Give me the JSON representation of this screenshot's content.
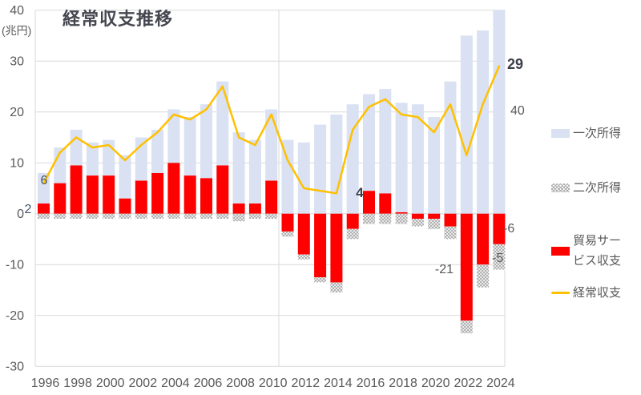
{
  "title": "経常収支推移",
  "y_axis": {
    "unit_label": "(兆円)",
    "ticks": [
      40,
      30,
      20,
      10,
      0,
      -10,
      -20,
      -30
    ]
  },
  "x_axis": {
    "ticks": [
      "1996",
      "1998",
      "2000",
      "2002",
      "2004",
      "2006",
      "2008",
      "2010",
      "2012",
      "2014",
      "2016",
      "2018",
      "2020",
      "2022",
      "2024"
    ]
  },
  "legend": {
    "items": [
      {
        "label": "一次所得",
        "swatch": "solid",
        "color": "#d9e1f2"
      },
      {
        "label": "二次所得",
        "swatch": "hatch",
        "color": "#ababab"
      },
      {
        "label": "貿易サービス収支",
        "swatch": "solid",
        "color": "#ff0000"
      },
      {
        "label": "経常収支",
        "swatch": "line",
        "color": "#ffc000"
      }
    ]
  },
  "chart_data": {
    "type": "combo-stacked-bar-and-line",
    "title": "経常収支推移",
    "ylabel": "(兆円)",
    "ylim": [
      -30,
      40
    ],
    "grid": true,
    "legend_position": "right",
    "x": [
      1996,
      1997,
      1998,
      1999,
      2000,
      2001,
      2002,
      2003,
      2004,
      2005,
      2006,
      2007,
      2008,
      2009,
      2010,
      2011,
      2012,
      2013,
      2014,
      2015,
      2016,
      2017,
      2018,
      2019,
      2020,
      2021,
      2022,
      2023,
      2024
    ],
    "series": [
      {
        "name": "一次所得",
        "type": "bar",
        "stack": true,
        "color": "#d9e1f2",
        "values": [
          6,
          7,
          7,
          6.5,
          7,
          8.5,
          8.5,
          8.5,
          10.5,
          11.5,
          14.5,
          16.5,
          14,
          12.5,
          14,
          14.5,
          14,
          17.5,
          19.5,
          21.5,
          19,
          20.5,
          21.5,
          21.5,
          19,
          26,
          35,
          36,
          40
        ]
      },
      {
        "name": "二次所得",
        "type": "bar",
        "stack": true,
        "pattern": "hatch",
        "color": "#ababab",
        "values": [
          -1,
          -1,
          -1,
          -1,
          -1,
          -1,
          -1,
          -1,
          -1,
          -1,
          -1,
          -1,
          -1.5,
          -1,
          -1,
          -1,
          -1,
          -1,
          -2,
          -2,
          -2,
          -2,
          -2,
          -1.5,
          -2,
          -2.5,
          -2.5,
          -4.5,
          -5
        ]
      },
      {
        "name": "貿易サービス収支",
        "type": "bar",
        "stack": true,
        "color": "#ff0000",
        "values": [
          2,
          6,
          9.5,
          7.5,
          7.5,
          3,
          6.5,
          8,
          10,
          7.5,
          7,
          9.5,
          2,
          2,
          6.5,
          -3.5,
          -8,
          -12.5,
          -13.5,
          -3,
          4.5,
          4,
          0.3,
          -1,
          -1,
          -2.5,
          -21,
          -10,
          -6
        ]
      },
      {
        "name": "経常収支",
        "type": "line",
        "color": "#ffc000",
        "values": [
          6,
          12,
          15,
          13,
          13.5,
          10.5,
          13.5,
          16,
          19.5,
          18.5,
          20.5,
          25,
          15,
          13.5,
          19.5,
          10.5,
          5,
          4.5,
          4,
          16.5,
          21,
          22.5,
          19.5,
          19,
          16,
          21.5,
          11.5,
          21.5,
          29
        ]
      }
    ],
    "annotations": [
      {
        "id": "label-1996-line",
        "text": "6",
        "year": 1996,
        "series": "経常収支"
      },
      {
        "id": "label-1996-trade",
        "text": "2",
        "year": 1996,
        "series": "貿易サービス収支"
      },
      {
        "id": "label-2014-line",
        "text": "4",
        "year": 2014,
        "series": "経常収支"
      },
      {
        "id": "label-2024-line",
        "text": "29",
        "year": 2024,
        "series": "経常収支"
      },
      {
        "id": "label-2024-primary",
        "text": "40",
        "year": 2024,
        "series": "一次所得"
      },
      {
        "id": "label-2022-trade",
        "text": "-21",
        "year": 2022,
        "series": "貿易サービス収支"
      },
      {
        "id": "label-2024-trade",
        "text": "-6",
        "year": 2024,
        "series": "貿易サービス収支"
      },
      {
        "id": "label-2024-secondary",
        "text": "-5",
        "year": 2024,
        "series": "二次所得"
      }
    ],
    "colors": {
      "grid": "#d9d9d9",
      "axis_text": "#595959",
      "title_text": "#44474f",
      "annotation_dark": "#3b3f4a",
      "annotation_blue": "#44546a"
    }
  }
}
